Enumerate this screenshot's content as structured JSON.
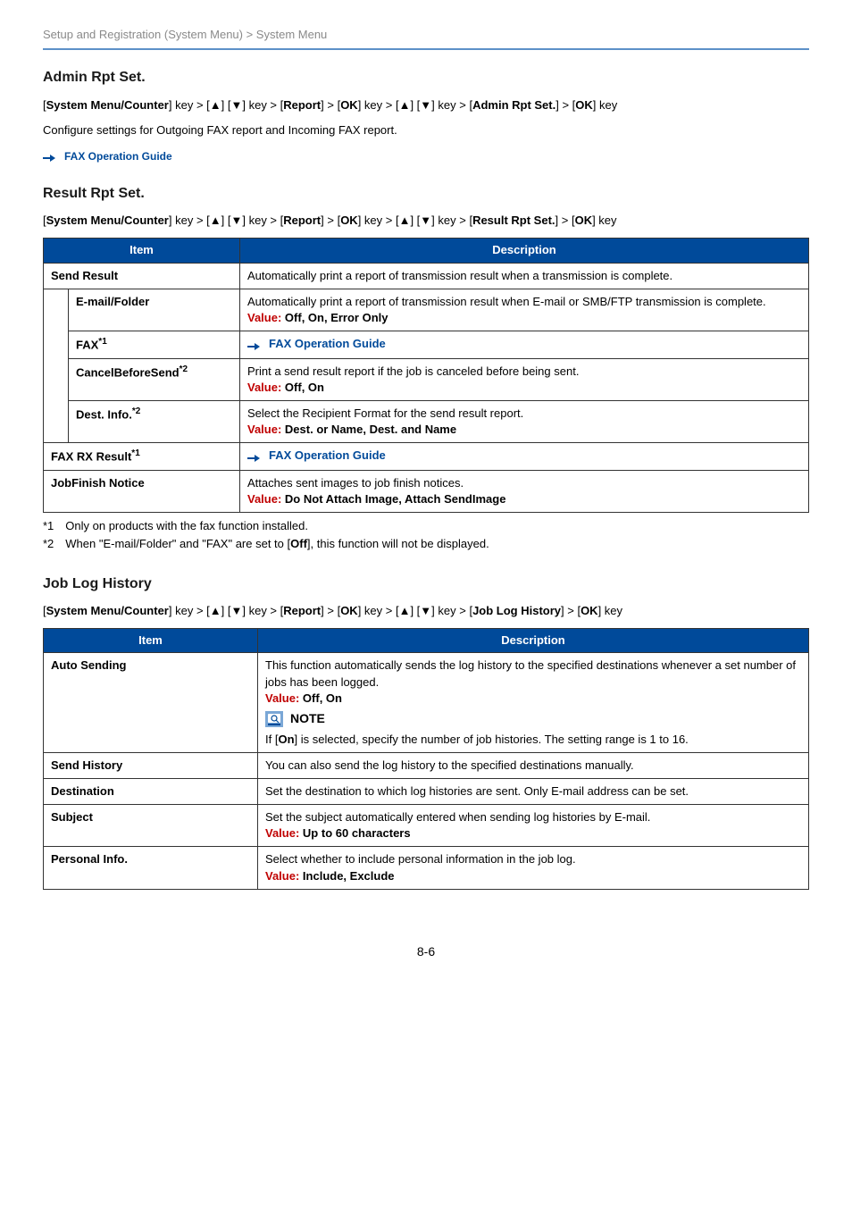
{
  "colors": {
    "accent_blue": "#004a9a",
    "rule_blue": "#5c90c8",
    "grey_text": "#8a8a8a",
    "value_red": "#c00000",
    "border": "#333333",
    "note_bg": "#7aa7d6",
    "arrow_fill": "#004a9a"
  },
  "breadcrumb": "Setup and Registration (System Menu) > System Menu",
  "sections": {
    "admin": {
      "title": "Admin Rpt Set.",
      "path_parts": [
        "[",
        "System Menu/Counter",
        "] key > [",
        "▲",
        "] [",
        "▼",
        "] key > [",
        "Report",
        "] > [",
        "OK",
        "] key > [",
        "▲",
        "] [",
        "▼",
        "] key > [",
        "Admin Rpt Set.",
        "] > [",
        "OK",
        "] key"
      ],
      "desc": "Configure settings for Outgoing FAX report and Incoming FAX report.",
      "xref": "FAX Operation Guide"
    },
    "result": {
      "title": "Result Rpt Set.",
      "path_parts": [
        "[",
        "System Menu/Counter",
        "] key > [",
        "▲",
        "] [",
        "▼",
        "] key > [",
        "Report",
        "] > [",
        "OK",
        "] key > [",
        "▲",
        "] [",
        "▼",
        "] key > [",
        "Result Rpt Set.",
        "] > [",
        "OK",
        "] key"
      ],
      "headers": {
        "item": "Item",
        "desc": "Description"
      },
      "rows": {
        "send_result": {
          "label": "Send Result",
          "desc": "Automatically print a report of transmission result when a transmission is complete."
        },
        "email_folder": {
          "label": "E-mail/Folder",
          "desc": "Automatically print a report of transmission result when E-mail or SMB/FTP transmission is complete.",
          "value": "Off, On, Error Only"
        },
        "fax": {
          "label_base": "FAX",
          "sup": "*1",
          "xref": "FAX Operation Guide"
        },
        "cancel_before": {
          "label_base": "CancelBeforeSend",
          "sup": "*2",
          "desc": "Print a send result report if the job is canceled before being sent.",
          "value": "Off, On"
        },
        "dest_info": {
          "label_base": "Dest. Info.",
          "sup": "*2",
          "desc": "Select the Recipient Format for the send result report.",
          "value": "Dest. or Name, Dest. and Name"
        },
        "fax_rx": {
          "label_base": "FAX RX Result",
          "sup": "*1",
          "xref": "FAX Operation Guide"
        },
        "jobfinish": {
          "label": "JobFinish Notice",
          "desc": "Attaches sent images to job finish notices.",
          "value": "Do Not Attach Image, Attach SendImage"
        }
      },
      "footnotes": {
        "f1": "*1 Only on products with the fax function installed.",
        "f2_pre": "*2 When \"E-mail/Folder\" and \"FAX\" are set to [",
        "f2_bold": "Off",
        "f2_post": "], this function will not be displayed."
      }
    },
    "joblog": {
      "title": "Job Log History",
      "path_parts": [
        "[",
        "System Menu/Counter",
        "] key > [",
        "▲",
        "] [",
        "▼",
        "] key > [",
        "Report",
        "] > [",
        "OK",
        "] key > [",
        "▲",
        "] [",
        "▼",
        "] key > [",
        "Job Log History",
        "] > [",
        "OK",
        "] key"
      ],
      "headers": {
        "item": "Item",
        "desc": "Description"
      },
      "rows": {
        "auto_sending": {
          "label": "Auto Sending",
          "desc": "This function automatically sends the log history to the specified destinations whenever a set number of jobs has been logged.",
          "value": "Off, On",
          "note_label": "NOTE",
          "note_pre": "If [",
          "note_bold": "On",
          "note_post": "] is selected, specify the number of job histories. The setting range is 1 to 16."
        },
        "send_history": {
          "label": "Send History",
          "desc": "You can also send the log history to the specified destinations manually."
        },
        "destination": {
          "label": "Destination",
          "desc": "Set the destination to which log histories are sent. Only E-mail address can be set."
        },
        "subject": {
          "label": "Subject",
          "desc": "Set the subject automatically entered when sending log histories by E-mail.",
          "value": "Up to 60 characters"
        },
        "personal": {
          "label": "Personal Info.",
          "desc": "Select whether to include personal information in the job log.",
          "value": "Include, Exclude"
        }
      }
    }
  },
  "value_prefix": "Value: ",
  "page_number": "8-6"
}
